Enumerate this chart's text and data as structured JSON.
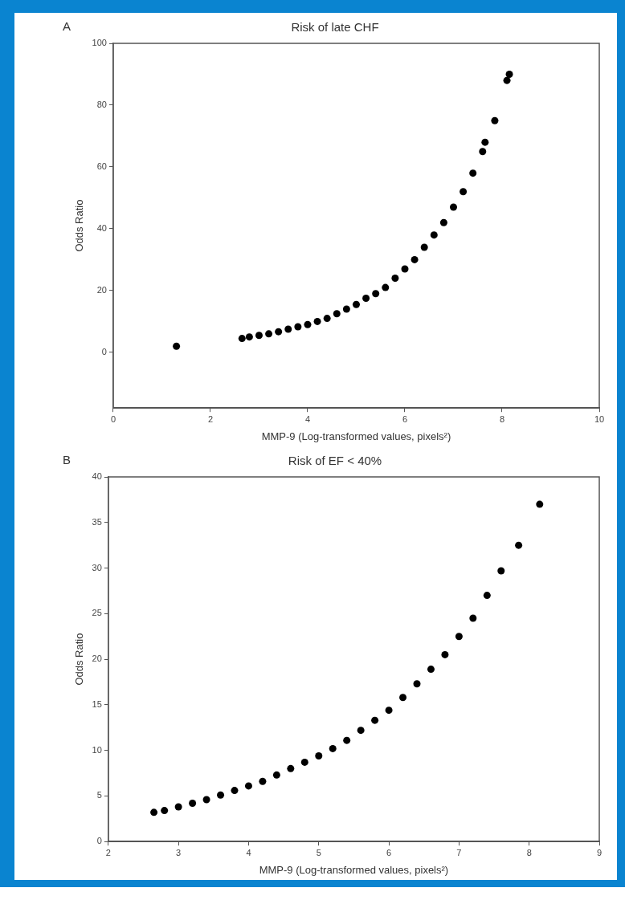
{
  "chart_data": [
    {
      "type": "scatter",
      "title": "Risk of late CHF",
      "annotations": [
        "A"
      ],
      "xlabel": "MMP-9 (Log-transformed values, pixels²)",
      "ylabel": "Odds Ratio",
      "xlim": [
        0,
        10
      ],
      "xticks": [
        0,
        2,
        4,
        6,
        8,
        10
      ],
      "ylim": [
        -18,
        100
      ],
      "yticks": [
        0,
        20,
        40,
        60,
        80,
        100
      ],
      "marker": "circle",
      "grid": false,
      "legend": false,
      "x": [
        1.3,
        2.65,
        2.8,
        3.0,
        3.2,
        3.4,
        3.6,
        3.8,
        4.0,
        4.2,
        4.4,
        4.6,
        4.8,
        5.0,
        5.2,
        5.4,
        5.6,
        5.8,
        6.0,
        6.2,
        6.4,
        6.6,
        6.8,
        7.0,
        7.2,
        7.4,
        7.6,
        7.65,
        7.85,
        8.1,
        8.15
      ],
      "series": [
        {
          "color": "#000000",
          "values": [
            2,
            4.5,
            5,
            5.5,
            6,
            6.7,
            7.5,
            8.3,
            9,
            10,
            11,
            12.5,
            14,
            15.5,
            17.5,
            19,
            21,
            24,
            27,
            30,
            34,
            38,
            42,
            47,
            52,
            58,
            65,
            68,
            75,
            88,
            90
          ]
        }
      ]
    },
    {
      "type": "scatter",
      "title": "Risk of EF < 40%",
      "annotations": [
        "B"
      ],
      "xlabel": "MMP-9 (Log-transformed values, pixels²)",
      "ylabel": "Odds Ratio",
      "xlim": [
        2,
        9
      ],
      "xticks": [
        2,
        3,
        4,
        5,
        6,
        7,
        8,
        9
      ],
      "ylim": [
        0,
        40
      ],
      "yticks": [
        0,
        5,
        10,
        15,
        20,
        25,
        30,
        35,
        40
      ],
      "marker": "circle",
      "grid": false,
      "legend": false,
      "x": [
        2.65,
        2.8,
        3.0,
        3.2,
        3.4,
        3.6,
        3.8,
        4.0,
        4.2,
        4.4,
        4.6,
        4.8,
        5.0,
        5.2,
        5.4,
        5.6,
        5.8,
        6.0,
        6.2,
        6.4,
        6.6,
        6.8,
        7.0,
        7.2,
        7.4,
        7.6,
        7.85,
        8.15
      ],
      "series": [
        {
          "color": "#000000",
          "values": [
            3.2,
            3.4,
            3.8,
            4.2,
            4.6,
            5.1,
            5.6,
            6.1,
            6.6,
            7.3,
            8,
            8.7,
            9.4,
            10.2,
            11.1,
            12.2,
            13.3,
            14.4,
            15.8,
            17.3,
            18.9,
            20.5,
            22.5,
            24.5,
            27,
            29.7,
            32.5,
            37
          ]
        }
      ]
    }
  ]
}
